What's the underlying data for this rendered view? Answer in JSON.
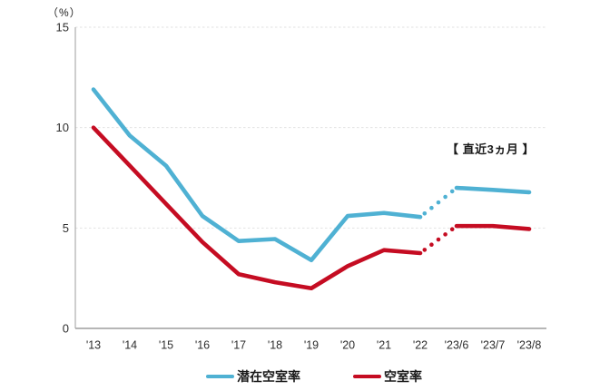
{
  "chart": {
    "unit_label": "（%）",
    "annotation": "【 直近3ヵ月 】"
  },
  "chart_data": {
    "type": "line",
    "categories": [
      "'13",
      "'14",
      "'15",
      "'16",
      "'17",
      "'18",
      "'19",
      "'20",
      "'21",
      "'22",
      "'23/6",
      "'23/7",
      "'23/8"
    ],
    "series": [
      {
        "name": "潜在空室率",
        "color": "#4FB1D3",
        "values": [
          11.9,
          9.6,
          8.1,
          5.6,
          4.35,
          4.45,
          3.4,
          5.6,
          5.75,
          5.55,
          7.0,
          6.9,
          6.78
        ]
      },
      {
        "name": "空室率",
        "color": "#C50C22",
        "values": [
          10.0,
          8.1,
          6.2,
          4.3,
          2.7,
          2.3,
          2.0,
          3.1,
          3.9,
          3.75,
          5.1,
          5.1,
          4.95
        ]
      }
    ],
    "dotted_segment_between_categories": [
      "'22",
      "'23/6"
    ],
    "ylabel": "（%）",
    "ylim": [
      0,
      15
    ],
    "y_ticks": [
      0,
      5,
      10,
      15
    ],
    "grid": "horizontal dashed at 5, 10, 15",
    "legend_position": "bottom",
    "annotation": "【 直近3ヵ月 】"
  },
  "style_colors": {
    "grid": "#E2E2E2",
    "axis_y": "#B3B3B3",
    "axis_x": "#9E9E9E",
    "tick_text": "#2E2E2E"
  }
}
